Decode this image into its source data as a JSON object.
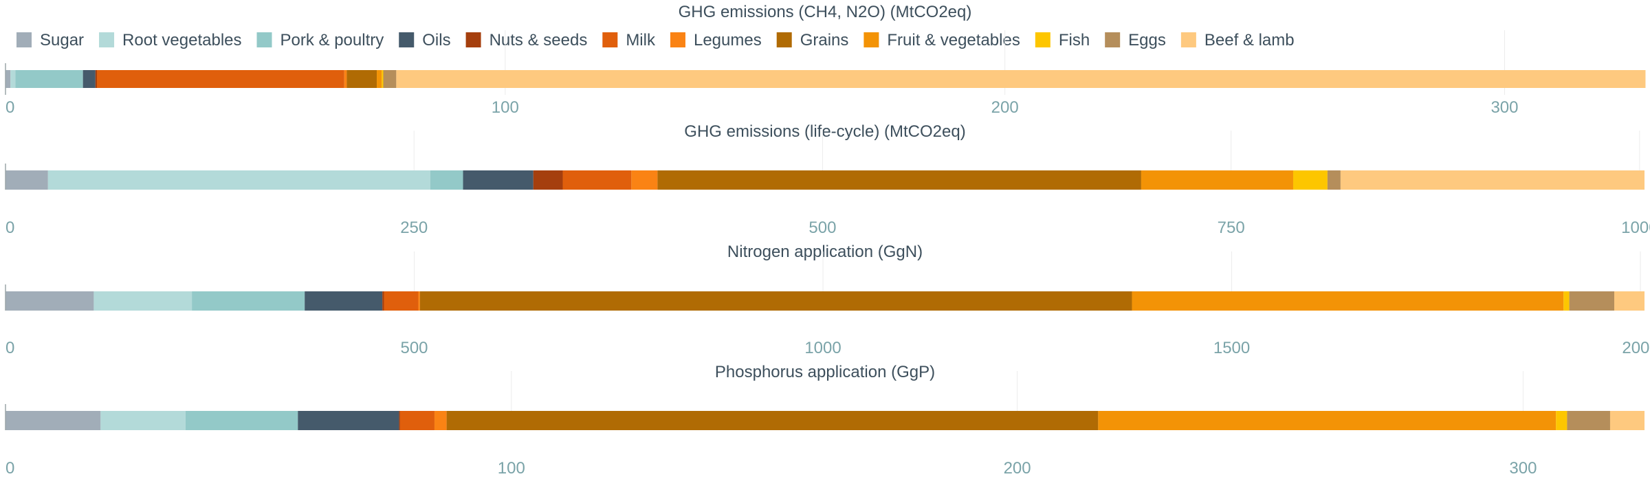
{
  "colors": {
    "Sugar": "#a1adb8",
    "Root vegetables": "#b3dad9",
    "Pork & poultry": "#93c9c8",
    "Oils": "#455a6b",
    "Nuts & seeds": "#a53f0e",
    "Milk": "#e05f0c",
    "Legumes": "#fa8314",
    "Grains": "#b06b04",
    "Fruit & vegetables": "#f39306",
    "Fish": "#fdc600",
    "Eggs": "#b58e5b",
    "Beef & lamb": "#fec97f"
  },
  "legend": [
    "Sugar",
    "Root vegetables",
    "Pork & poultry",
    "Oils",
    "Nuts & seeds",
    "Milk",
    "Legumes",
    "Grains",
    "Fruit & vegetables",
    "Fish",
    "Eggs",
    "Beef & lamb"
  ],
  "chart_data": [
    {
      "type": "bar",
      "orientation": "horizontal",
      "stacked": true,
      "title": "GHG emissions (CH4, N2O) (MtCO2eq)",
      "xlim": [
        0,
        328
      ],
      "ticks": [
        0,
        100,
        200,
        300
      ],
      "series": [
        {
          "name": "Sugar",
          "values": [
            1
          ]
        },
        {
          "name": "Root vegetables",
          "values": [
            1
          ]
        },
        {
          "name": "Pork & poultry",
          "values": [
            13.5
          ]
        },
        {
          "name": "Oils",
          "values": [
            2.5
          ]
        },
        {
          "name": "Nuts & seeds",
          "values": [
            0.3
          ]
        },
        {
          "name": "Milk",
          "values": [
            49.5
          ]
        },
        {
          "name": "Legumes",
          "values": [
            0.5
          ]
        },
        {
          "name": "Grains",
          "values": [
            6
          ]
        },
        {
          "name": "Fruit & vegetables",
          "values": [
            1
          ]
        },
        {
          "name": "Fish",
          "values": [
            0.3
          ]
        },
        {
          "name": "Eggs",
          "values": [
            2.6
          ]
        },
        {
          "name": "Beef & lamb",
          "values": [
            250
          ]
        }
      ]
    },
    {
      "type": "bar",
      "orientation": "horizontal",
      "stacked": true,
      "title": "GHG emissions (life-cycle) (MtCO2eq)",
      "xlim": [
        0,
        1003
      ],
      "ticks": [
        0,
        250,
        500,
        750,
        1000
      ],
      "series": [
        {
          "name": "Sugar",
          "values": [
            26
          ]
        },
        {
          "name": "Root vegetables",
          "values": [
            234
          ]
        },
        {
          "name": "Pork & poultry",
          "values": [
            20
          ]
        },
        {
          "name": "Oils",
          "values": [
            43
          ]
        },
        {
          "name": "Nuts & seeds",
          "values": [
            18
          ]
        },
        {
          "name": "Milk",
          "values": [
            42
          ]
        },
        {
          "name": "Legumes",
          "values": [
            16
          ]
        },
        {
          "name": "Grains",
          "values": [
            296
          ]
        },
        {
          "name": "Fruit & vegetables",
          "values": [
            93
          ]
        },
        {
          "name": "Fish",
          "values": [
            21
          ]
        },
        {
          "name": "Eggs",
          "values": [
            8
          ]
        },
        {
          "name": "Beef & lamb",
          "values": [
            186
          ]
        }
      ]
    },
    {
      "type": "bar",
      "orientation": "horizontal",
      "stacked": true,
      "title": "Nitrogen application (GgN)",
      "xlim": [
        0,
        2005
      ],
      "ticks": [
        0,
        500,
        1000,
        1500,
        2000
      ],
      "series": [
        {
          "name": "Sugar",
          "values": [
            108
          ]
        },
        {
          "name": "Root vegetables",
          "values": [
            120
          ]
        },
        {
          "name": "Pork & poultry",
          "values": [
            138
          ]
        },
        {
          "name": "Oils",
          "values": [
            95
          ]
        },
        {
          "name": "Nuts & seeds",
          "values": [
            2
          ]
        },
        {
          "name": "Milk",
          "values": [
            42
          ]
        },
        {
          "name": "Legumes",
          "values": [
            2
          ]
        },
        {
          "name": "Grains",
          "values": [
            871
          ]
        },
        {
          "name": "Fruit & vegetables",
          "values": [
            528
          ]
        },
        {
          "name": "Fish",
          "values": [
            7
          ]
        },
        {
          "name": "Eggs",
          "values": [
            55
          ]
        },
        {
          "name": "Beef & lamb",
          "values": [
            37
          ]
        }
      ]
    },
    {
      "type": "bar",
      "orientation": "horizontal",
      "stacked": true,
      "title": "Phosphorus application (GgP)",
      "xlim": [
        0,
        324
      ],
      "ticks": [
        0,
        100,
        200,
        300
      ],
      "series": [
        {
          "name": "Sugar",
          "values": [
            18.8
          ]
        },
        {
          "name": "Root vegetables",
          "values": [
            16.8
          ]
        },
        {
          "name": "Pork & poultry",
          "values": [
            22.2
          ]
        },
        {
          "name": "Oils",
          "values": [
            20
          ]
        },
        {
          "name": "Nuts & seeds",
          "values": [
            0.2
          ]
        },
        {
          "name": "Milk",
          "values": [
            6.8
          ]
        },
        {
          "name": "Legumes",
          "values": [
            2.4
          ]
        },
        {
          "name": "Grains",
          "values": [
            128.8
          ]
        },
        {
          "name": "Fruit & vegetables",
          "values": [
            90.5
          ]
        },
        {
          "name": "Fish",
          "values": [
            2.2
          ]
        },
        {
          "name": "Eggs",
          "values": [
            8.5
          ]
        },
        {
          "name": "Beef & lamb",
          "values": [
            6.8
          ]
        }
      ]
    }
  ]
}
